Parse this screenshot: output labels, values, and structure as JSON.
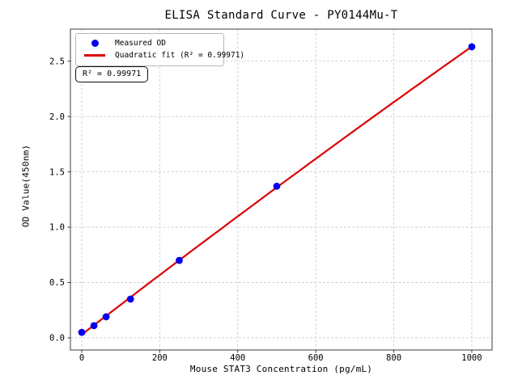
{
  "chart_data": {
    "type": "scatter",
    "title": "ELISA Standard Curve - PY0144Mu-T",
    "xlabel": "Mouse STAT3 Concentration (pg/mL)",
    "ylabel": "OD Value(450nm)",
    "x": [
      0,
      31.25,
      62.5,
      125,
      250,
      500,
      1000
    ],
    "series": [
      {
        "name": "Measured OD",
        "type": "scatter",
        "values": [
          0.05,
          0.11,
          0.19,
          0.35,
          0.7,
          1.37,
          2.63
        ]
      },
      {
        "name": "Quadratic fit (R² = 0.99971)",
        "type": "line",
        "fit": "quadratic",
        "r_squared": 0.99971
      }
    ],
    "xlim": [
      -29,
      1052
    ],
    "ylim": [
      -0.11,
      2.79
    ],
    "xticks": [
      0,
      200,
      400,
      600,
      800,
      1000
    ],
    "xticklabels": [
      "0",
      "200",
      "400",
      "600",
      "800",
      "1000"
    ],
    "yticks": [
      0,
      0.5,
      1,
      1.5,
      2,
      2.5
    ],
    "yticklabels": [
      "0.0",
      "0.5",
      "1.0",
      "1.5",
      "2.0",
      "2.5"
    ],
    "grid": true,
    "legend_position": "upper-left",
    "annotation": "R² = 0.99971",
    "colors": {
      "points": "#0000ee",
      "fit_line": "#dc0000",
      "grid": "#c9c9c9",
      "spine": "#3c3c3c",
      "text": "#000000",
      "background": "#ffffff"
    }
  }
}
